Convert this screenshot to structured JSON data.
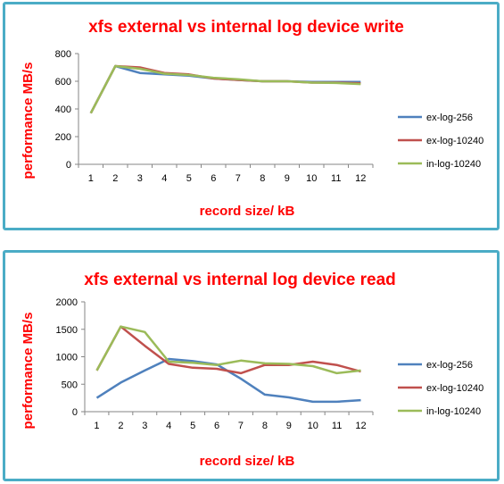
{
  "colors": {
    "frame": "#4bacc6",
    "title": "#ff0000",
    "axis": "#868686"
  },
  "chart_data": [
    {
      "type": "line",
      "title": "xfs external vs internal log device write",
      "xlabel": "record size/ kB",
      "ylabel": "performance MB/s",
      "categories": [
        "1",
        "2",
        "3",
        "4",
        "5",
        "6",
        "7",
        "8",
        "9",
        "10",
        "11",
        "12"
      ],
      "ylim": [
        0,
        800
      ],
      "yticks": [
        "0",
        "200",
        "400",
        "600",
        "800"
      ],
      "grid": false,
      "legend": "right",
      "series": [
        {
          "name": "ex-log-256",
          "color": "#4f81bd",
          "values": [
            370,
            710,
            660,
            650,
            640,
            620,
            610,
            600,
            600,
            595,
            595,
            595
          ]
        },
        {
          "name": "ex-log-10240",
          "color": "#c0504d",
          "values": [
            370,
            710,
            700,
            660,
            650,
            620,
            610,
            600,
            600,
            590,
            590,
            585
          ]
        },
        {
          "name": "in-log-10240",
          "color": "#9bbb59",
          "values": [
            370,
            710,
            690,
            655,
            645,
            625,
            615,
            600,
            600,
            590,
            588,
            580
          ]
        }
      ]
    },
    {
      "type": "line",
      "title": "xfs external vs internal log device read",
      "xlabel": "record size/ kB",
      "ylabel": "performance MB/s",
      "categories": [
        "1",
        "2",
        "3",
        "4",
        "5",
        "6",
        "7",
        "8",
        "9",
        "10",
        "11",
        "12"
      ],
      "ylim": [
        0,
        2000
      ],
      "yticks": [
        "0",
        "500",
        "1000",
        "1500",
        "2000"
      ],
      "grid": false,
      "legend": "right",
      "series": [
        {
          "name": "ex-log-256",
          "color": "#4f81bd",
          "values": [
            250,
            530,
            750,
            960,
            920,
            860,
            600,
            310,
            260,
            180,
            180,
            210
          ]
        },
        {
          "name": "ex-log-10240",
          "color": "#c0504d",
          "values": [
            750,
            1550,
            1200,
            870,
            800,
            780,
            700,
            850,
            850,
            910,
            850,
            730
          ]
        },
        {
          "name": "in-log-10240",
          "color": "#9bbb59",
          "values": [
            750,
            1550,
            1450,
            910,
            890,
            850,
            930,
            880,
            870,
            830,
            700,
            750
          ]
        }
      ]
    }
  ]
}
